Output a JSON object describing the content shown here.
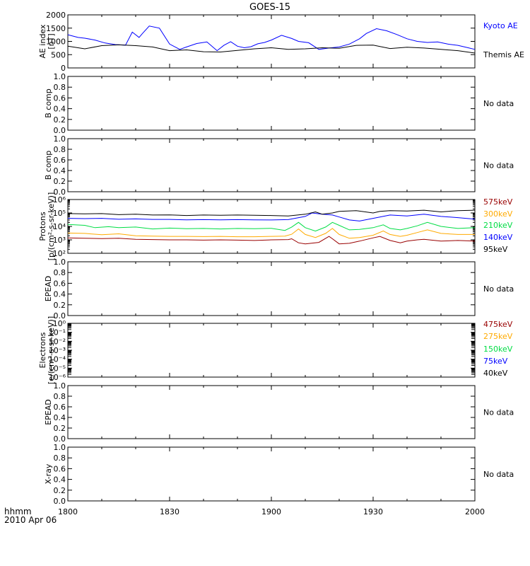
{
  "title": "GOES-15",
  "time_axis": {
    "ticks": [
      "1800",
      "1830",
      "1900",
      "1930",
      "2000"
    ],
    "unit_label": "hhmm",
    "date_label": "2010 Apr 06",
    "range_minutes": [
      0,
      120
    ]
  },
  "colors": {
    "blue": "#0000ff",
    "black": "#000000",
    "green": "#00dd44",
    "orange": "#ffaa00",
    "dark_red": "#990000"
  },
  "chart_data": [
    {
      "type": "line",
      "panel": "ae",
      "ylabel": [
        "AE index",
        "[nT]"
      ],
      "ylim": [
        0,
        2000
      ],
      "yticks": [
        "0",
        "500",
        "1000",
        "1500",
        "2000"
      ],
      "series": [
        {
          "name": "Kyoto AE",
          "color": "#0000ff",
          "x": [
            0,
            3,
            5,
            8,
            11,
            14,
            17,
            19,
            21,
            22,
            24,
            27,
            30,
            33,
            35,
            38,
            41,
            44,
            46,
            48,
            50,
            52,
            54,
            56,
            58,
            60,
            63,
            66,
            68,
            71,
            74,
            77,
            80,
            83,
            86,
            88,
            91,
            94,
            97,
            100,
            103,
            106,
            109,
            112,
            115,
            118,
            120
          ],
          "y": [
            1250,
            1150,
            1120,
            1050,
            940,
            880,
            860,
            1350,
            1150,
            1300,
            1580,
            1500,
            900,
            700,
            790,
            920,
            980,
            650,
            850,
            990,
            820,
            760,
            800,
            910,
            960,
            1050,
            1230,
            1110,
            1000,
            950,
            700,
            750,
            790,
            900,
            1100,
            1300,
            1480,
            1400,
            1260,
            1100,
            1000,
            960,
            980,
            900,
            850,
            760,
            700
          ]
        },
        {
          "name": "Themis AE",
          "color": "#000000",
          "x": [
            0,
            5,
            10,
            15,
            20,
            25,
            30,
            35,
            40,
            45,
            50,
            55,
            60,
            65,
            70,
            75,
            80,
            85,
            90,
            95,
            100,
            105,
            110,
            115,
            120
          ],
          "y": [
            820,
            720,
            840,
            870,
            840,
            790,
            650,
            680,
            610,
            600,
            660,
            720,
            760,
            700,
            720,
            760,
            740,
            850,
            860,
            730,
            780,
            750,
            700,
            650,
            560
          ]
        }
      ]
    },
    {
      "type": "line",
      "panel": "protons",
      "ylabel": [
        "Protons",
        "[p/(cm²-s-sr-keV)]"
      ],
      "ylog": true,
      "ylim_exp": [
        2,
        6
      ],
      "yticks": [
        "10²",
        "10³",
        "10⁴",
        "10⁵",
        "10⁶"
      ],
      "series": [
        {
          "name": "575keV",
          "color": "#990000",
          "x": [
            0,
            5,
            10,
            15,
            20,
            25,
            30,
            35,
            40,
            45,
            50,
            55,
            60,
            65,
            66,
            68,
            70,
            74,
            77,
            78,
            80,
            83,
            86,
            90,
            92,
            95,
            98,
            100,
            103,
            105,
            110,
            115,
            120
          ],
          "y": [
            1400,
            1300,
            1250,
            1300,
            1100,
            1050,
            1000,
            1000,
            950,
            1000,
            950,
            900,
            1000,
            1050,
            1200,
            600,
            500,
            650,
            1800,
            1200,
            500,
            550,
            800,
            1400,
            1800,
            900,
            600,
            800,
            1000,
            1100,
            800,
            900,
            800
          ]
        },
        {
          "name": "300keV",
          "color": "#ffaa00",
          "x": [
            0,
            5,
            10,
            15,
            20,
            25,
            30,
            35,
            40,
            45,
            50,
            55,
            60,
            64,
            66,
            68,
            70,
            73,
            76,
            78,
            80,
            83,
            86,
            90,
            93,
            95,
            98,
            100,
            103,
            106,
            110,
            115,
            120
          ],
          "y": [
            3200,
            3000,
            2400,
            2800,
            2000,
            1900,
            1800,
            1800,
            1750,
            1800,
            1700,
            1700,
            1800,
            1900,
            2600,
            6500,
            2500,
            1500,
            3000,
            7000,
            2500,
            1300,
            1500,
            2200,
            4600,
            2500,
            1800,
            2200,
            3500,
            5500,
            3000,
            2500,
            2500
          ]
        },
        {
          "name": "210keV",
          "color": "#00dd44",
          "x": [
            0,
            5,
            8,
            12,
            15,
            20,
            25,
            30,
            35,
            40,
            45,
            50,
            55,
            60,
            64,
            66,
            68,
            70,
            73,
            76,
            78,
            80,
            83,
            86,
            90,
            93,
            95,
            98,
            100,
            103,
            106,
            110,
            115,
            120
          ],
          "y": [
            14000,
            12000,
            8000,
            9500,
            8000,
            9000,
            6500,
            7500,
            6800,
            7000,
            6500,
            7000,
            6800,
            7200,
            5000,
            9000,
            20000,
            8000,
            4500,
            9000,
            20000,
            12000,
            5500,
            6000,
            8000,
            13000,
            7000,
            5500,
            7000,
            11000,
            20000,
            10000,
            7000,
            8000
          ]
        },
        {
          "name": "140keV",
          "color": "#0000ff",
          "x": [
            0,
            5,
            10,
            15,
            20,
            25,
            30,
            35,
            40,
            45,
            50,
            55,
            60,
            65,
            70,
            72,
            75,
            78,
            80,
            83,
            86,
            90,
            95,
            100,
            105,
            110,
            115,
            120
          ],
          "y": [
            40000,
            38000,
            40000,
            34000,
            36000,
            33000,
            33000,
            31000,
            32000,
            31000,
            32000,
            31000,
            30000,
            32000,
            55000,
            100000,
            80000,
            70000,
            50000,
            30000,
            25000,
            40000,
            70000,
            60000,
            80000,
            55000,
            45000,
            35000
          ]
        },
        {
          "name": "95keV",
          "color": "#000000",
          "x": [
            0,
            5,
            10,
            15,
            20,
            25,
            30,
            35,
            40,
            45,
            50,
            55,
            60,
            65,
            70,
            73,
            75,
            78,
            80,
            85,
            90,
            92,
            95,
            100,
            105,
            110,
            115,
            120
          ],
          "y": [
            90000,
            85000,
            90000,
            75000,
            80000,
            70000,
            72000,
            65000,
            70000,
            68000,
            70000,
            68000,
            65000,
            60000,
            80000,
            120000,
            80000,
            100000,
            130000,
            150000,
            100000,
            130000,
            150000,
            140000,
            160000,
            120000,
            150000,
            160000
          ]
        }
      ]
    },
    {
      "type": "line",
      "panel": "electrons",
      "ylabel": [
        "Electrons",
        "[e/(cm²-s-sr-keV)]"
      ],
      "ylog": true,
      "ylim_exp": [
        -6,
        0
      ],
      "yticks": [
        "10⁻⁶",
        "10⁻⁵",
        "10⁻⁴",
        "10⁻³",
        "10⁻²",
        "10⁻¹",
        "10⁰"
      ],
      "series": [
        {
          "name": "475keV",
          "color": "#990000",
          "x": [],
          "y": []
        },
        {
          "name": "275keV",
          "color": "#ffaa00",
          "x": [],
          "y": []
        },
        {
          "name": "150keV",
          "color": "#00dd44",
          "x": [],
          "y": []
        },
        {
          "name": "75keV",
          "color": "#0000ff",
          "x": [],
          "y": []
        },
        {
          "name": "40keV",
          "color": "#000000",
          "x": [],
          "y": []
        }
      ]
    }
  ],
  "empty_panels": {
    "bcomp1": {
      "ylabel": "B comp",
      "status": "No data"
    },
    "bcomp2": {
      "ylabel": "B comp",
      "status": "No data"
    },
    "epead1": {
      "ylabel": "EPEAD",
      "status": "No data"
    },
    "epead2": {
      "ylabel": "EPEAD",
      "status": "No data"
    },
    "xray": {
      "ylabel": "X-ray",
      "status": "No data"
    },
    "yticks": [
      "0.0",
      "0.2",
      "0.4",
      "0.6",
      "0.8",
      "1.0"
    ]
  }
}
